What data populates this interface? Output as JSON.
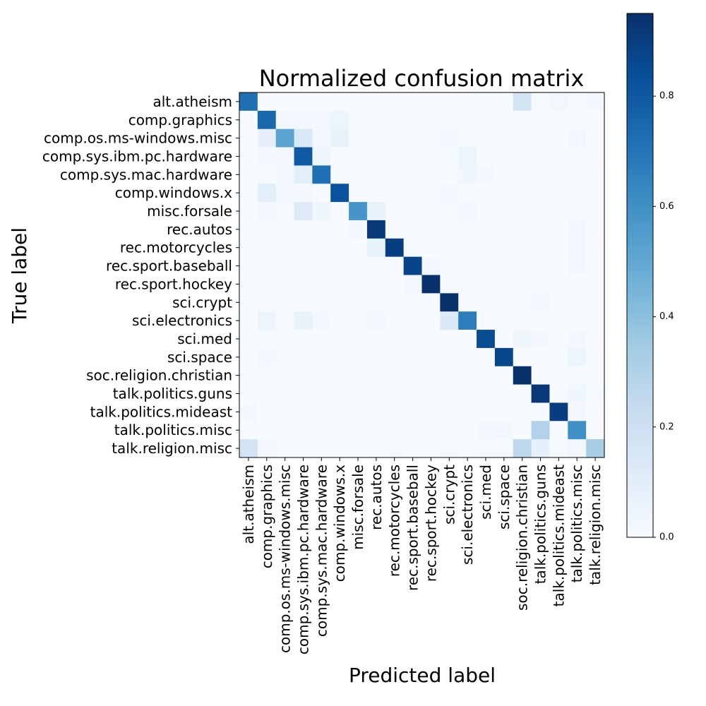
{
  "chart_data": {
    "type": "heatmap",
    "title": "Normalized confusion matrix",
    "xlabel": "Predicted label",
    "ylabel": "True label",
    "colormap": "Blues",
    "color_low": "#f7fbff",
    "color_high": "#08306b",
    "vmin": 0.0,
    "vmax": 0.95,
    "colorbar_ticks": [
      0.0,
      0.2,
      0.4,
      0.6,
      0.8
    ],
    "colorbar_tick_labels": [
      "0.0",
      "0.2",
      "0.4",
      "0.6",
      "0.8"
    ],
    "labels": [
      "alt.atheism",
      "comp.graphics",
      "comp.os.ms-windows.misc",
      "comp.sys.ibm.pc.hardware",
      "comp.sys.mac.hardware",
      "comp.windows.x",
      "misc.forsale",
      "rec.autos",
      "rec.motorcycles",
      "rec.sport.baseball",
      "rec.sport.hockey",
      "sci.crypt",
      "sci.electronics",
      "sci.med",
      "sci.space",
      "soc.religion.christian",
      "talk.politics.guns",
      "talk.politics.mideast",
      "talk.politics.misc",
      "talk.religion.misc"
    ],
    "matrix": [
      [
        0.72,
        0.0,
        0.0,
        0.0,
        0.0,
        0.0,
        0.0,
        0.0,
        0.0,
        0.0,
        0.0,
        0.0,
        0.0,
        0.01,
        0.01,
        0.16,
        0.01,
        0.03,
        0.01,
        0.02
      ],
      [
        0.0,
        0.75,
        0.02,
        0.03,
        0.02,
        0.05,
        0.01,
        0.01,
        0.01,
        0.0,
        0.0,
        0.01,
        0.01,
        0.0,
        0.01,
        0.01,
        0.0,
        0.0,
        0.0,
        0.0
      ],
      [
        0.0,
        0.08,
        0.52,
        0.14,
        0.02,
        0.07,
        0.01,
        0.01,
        0.01,
        0.0,
        0.01,
        0.03,
        0.01,
        0.01,
        0.01,
        0.01,
        0.0,
        0.0,
        0.03,
        0.0
      ],
      [
        0.0,
        0.02,
        0.03,
        0.8,
        0.05,
        0.01,
        0.01,
        0.01,
        0.0,
        0.0,
        0.0,
        0.01,
        0.05,
        0.0,
        0.0,
        0.0,
        0.0,
        0.0,
        0.0,
        0.0
      ],
      [
        0.0,
        0.01,
        0.02,
        0.1,
        0.72,
        0.01,
        0.01,
        0.01,
        0.0,
        0.0,
        0.0,
        0.01,
        0.04,
        0.02,
        0.0,
        0.0,
        0.01,
        0.0,
        0.01,
        0.0
      ],
      [
        0.0,
        0.1,
        0.02,
        0.02,
        0.0,
        0.83,
        0.0,
        0.0,
        0.01,
        0.0,
        0.0,
        0.02,
        0.0,
        0.0,
        0.01,
        0.01,
        0.0,
        0.0,
        0.01,
        0.0
      ],
      [
        0.0,
        0.02,
        0.01,
        0.12,
        0.04,
        0.0,
        0.58,
        0.07,
        0.01,
        0.0,
        0.0,
        0.01,
        0.03,
        0.0,
        0.0,
        0.0,
        0.01,
        0.01,
        0.01,
        0.0
      ],
      [
        0.0,
        0.0,
        0.0,
        0.0,
        0.0,
        0.0,
        0.02,
        0.92,
        0.01,
        0.0,
        0.0,
        0.0,
        0.01,
        0.0,
        0.0,
        0.0,
        0.0,
        0.0,
        0.02,
        0.0
      ],
      [
        0.0,
        0.0,
        0.0,
        0.0,
        0.0,
        0.0,
        0.0,
        0.07,
        0.9,
        0.01,
        0.0,
        0.0,
        0.0,
        0.0,
        0.0,
        0.0,
        0.01,
        0.0,
        0.02,
        0.0
      ],
      [
        0.01,
        0.0,
        0.0,
        0.0,
        0.0,
        0.01,
        0.01,
        0.01,
        0.0,
        0.88,
        0.03,
        0.0,
        0.0,
        0.0,
        0.0,
        0.01,
        0.0,
        0.0,
        0.02,
        0.0
      ],
      [
        0.0,
        0.0,
        0.0,
        0.0,
        0.0,
        0.0,
        0.0,
        0.0,
        0.0,
        0.02,
        0.95,
        0.0,
        0.0,
        0.01,
        0.0,
        0.0,
        0.0,
        0.0,
        0.0,
        0.0
      ],
      [
        0.0,
        0.01,
        0.0,
        0.0,
        0.0,
        0.0,
        0.0,
        0.0,
        0.0,
        0.0,
        0.0,
        0.95,
        0.0,
        0.0,
        0.0,
        0.0,
        0.02,
        0.0,
        0.01,
        0.0
      ],
      [
        0.0,
        0.05,
        0.0,
        0.07,
        0.02,
        0.01,
        0.0,
        0.03,
        0.01,
        0.0,
        0.0,
        0.13,
        0.67,
        0.0,
        0.0,
        0.0,
        0.0,
        0.0,
        0.0,
        0.0
      ],
      [
        0.01,
        0.01,
        0.0,
        0.01,
        0.0,
        0.0,
        0.0,
        0.01,
        0.0,
        0.0,
        0.0,
        0.0,
        0.0,
        0.85,
        0.0,
        0.04,
        0.02,
        0.01,
        0.02,
        0.0
      ],
      [
        0.0,
        0.02,
        0.0,
        0.0,
        0.0,
        0.01,
        0.0,
        0.0,
        0.0,
        0.0,
        0.0,
        0.01,
        0.01,
        0.0,
        0.87,
        0.0,
        0.0,
        0.0,
        0.05,
        0.0
      ],
      [
        0.01,
        0.0,
        0.0,
        0.0,
        0.0,
        0.0,
        0.0,
        0.0,
        0.0,
        0.0,
        0.0,
        0.0,
        0.0,
        0.0,
        0.0,
        0.95,
        0.0,
        0.0,
        0.0,
        0.0
      ],
      [
        0.0,
        0.0,
        0.0,
        0.0,
        0.0,
        0.0,
        0.0,
        0.01,
        0.0,
        0.0,
        0.0,
        0.01,
        0.0,
        0.0,
        0.0,
        0.0,
        0.92,
        0.0,
        0.04,
        0.01
      ],
      [
        0.02,
        0.0,
        0.0,
        0.0,
        0.0,
        0.0,
        0.0,
        0.01,
        0.0,
        0.0,
        0.0,
        0.0,
        0.0,
        0.0,
        0.0,
        0.01,
        0.01,
        0.9,
        0.02,
        0.0
      ],
      [
        0.01,
        0.0,
        0.0,
        0.0,
        0.0,
        0.0,
        0.0,
        0.0,
        0.0,
        0.0,
        0.0,
        0.01,
        0.0,
        0.02,
        0.03,
        0.0,
        0.3,
        0.0,
        0.6,
        0.0
      ],
      [
        0.18,
        0.02,
        0.0,
        0.0,
        0.0,
        0.0,
        0.0,
        0.0,
        0.01,
        0.0,
        0.0,
        0.01,
        0.0,
        0.01,
        0.01,
        0.26,
        0.08,
        0.01,
        0.03,
        0.33
      ]
    ]
  }
}
